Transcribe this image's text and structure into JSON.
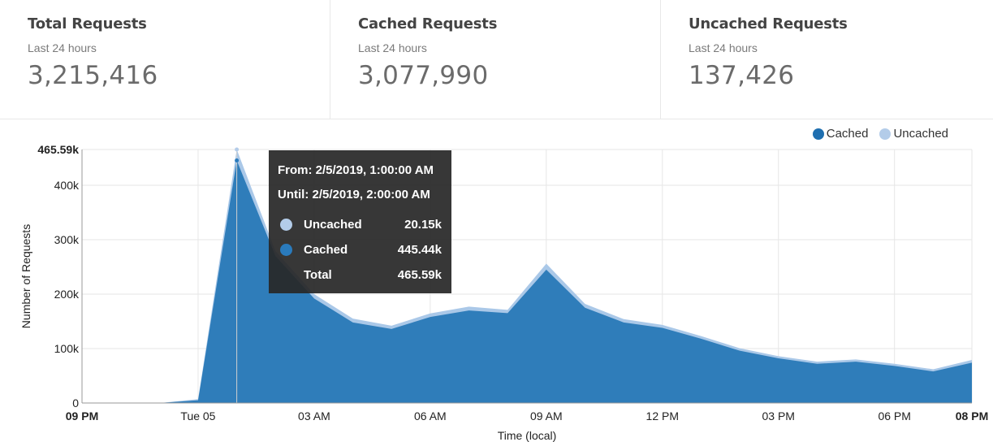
{
  "stats": [
    {
      "title": "Total Requests",
      "subtitle": "Last 24 hours",
      "value": "3,215,416"
    },
    {
      "title": "Cached Requests",
      "subtitle": "Last 24 hours",
      "value": "3,077,990"
    },
    {
      "title": "Uncached Requests",
      "subtitle": "Last 24 hours",
      "value": "137,426"
    }
  ],
  "colors": {
    "cached": "#2f7dba",
    "uncached": "#aac8e8",
    "grid": "#e6e6e6"
  },
  "legend": [
    {
      "label": "Cached",
      "color": "#1f6fb0"
    },
    {
      "label": "Uncached",
      "color": "#b3cce9"
    }
  ],
  "tooltip": {
    "from": "From: 2/5/2019, 1:00:00 AM",
    "until": "Until: 2/5/2019, 2:00:00 AM",
    "rows": [
      {
        "name": "Uncached",
        "value": "20.15k",
        "color": "#b3cce9"
      },
      {
        "name": "Cached",
        "value": "445.44k",
        "color": "#2a7bbd"
      }
    ],
    "total_label": "Total",
    "total_value": "465.59k"
  },
  "chart_data": {
    "type": "area",
    "stacked": true,
    "xlabel": "Time (local)",
    "ylabel": "Number of Requests",
    "x_ticks": [
      "09 PM",
      "Tue 05",
      "03 AM",
      "06 AM",
      "09 AM",
      "12 PM",
      "03 PM",
      "06 PM",
      "08 PM"
    ],
    "x_tick_hours": [
      0,
      3,
      6,
      9,
      12,
      15,
      18,
      21,
      23
    ],
    "x_tick_bold": [
      true,
      false,
      false,
      false,
      false,
      false,
      false,
      false,
      true
    ],
    "y_ticks": [
      "0",
      "100k",
      "200k",
      "300k",
      "400k",
      "465.59k"
    ],
    "y_tick_values": [
      0,
      100000,
      200000,
      300000,
      400000,
      465590
    ],
    "y_tick_bold": [
      false,
      false,
      false,
      false,
      false,
      true
    ],
    "ylim": [
      0,
      465590
    ],
    "xlim": [
      0,
      23
    ],
    "grid": true,
    "legend_position": "top-right",
    "x_hours": [
      0,
      1,
      2,
      3,
      4,
      5,
      6,
      7,
      8,
      9,
      10,
      11,
      12,
      13,
      14,
      15,
      16,
      17,
      18,
      19,
      20,
      21,
      22,
      23
    ],
    "series": [
      {
        "name": "Cached",
        "values": [
          0,
          0,
          0,
          5000,
          445440,
          270000,
          192000,
          148000,
          136000,
          158000,
          170000,
          165000,
          245000,
          175000,
          148000,
          138000,
          118000,
          96000,
          82000,
          72000,
          76000,
          68000,
          58000,
          74000
        ]
      },
      {
        "name": "Uncached",
        "values": [
          0,
          0,
          0,
          2000,
          20150,
          9000,
          8000,
          7000,
          6000,
          6500,
          7000,
          6000,
          11000,
          7000,
          6000,
          5500,
          5000,
          4500,
          4000,
          4000,
          4000,
          4000,
          4000,
          5000
        ]
      }
    ],
    "hover_hour": 4
  }
}
